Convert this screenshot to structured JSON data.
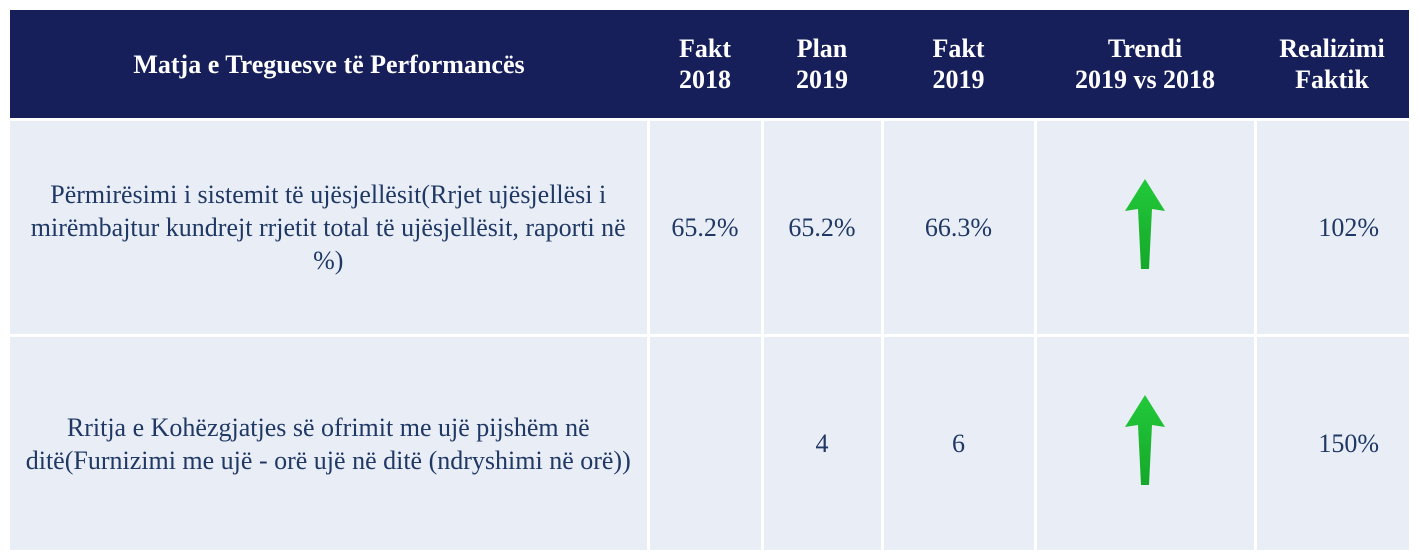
{
  "header": {
    "columns": [
      "Matja e Treguesve të Performancës",
      "Fakt\n2018",
      "Plan\n2019",
      "Fakt\n2019",
      "Trendi\n2019 vs 2018",
      "Realizimi\nFaktik"
    ]
  },
  "rows": [
    {
      "indicator": "Përmirësimi i sistemit të ujësjellësit(Rrjet ujësjellësi i mirëmbajtur kundrejt rrjetit total të ujësjellësit, raporti në %)",
      "fakt_2018": "65.2%",
      "plan_2019": "65.2%",
      "fakt_2019": "66.3%",
      "realizimi": "102%"
    },
    {
      "indicator": "Rritja e Kohëzgjatjes së ofrimit me ujë pijshëm në ditë(Furnizimi me ujë - orë ujë në ditë (ndryshimi në orë))",
      "plan_2019": "4",
      "fakt_2019": "6",
      "realizimi": "150%"
    }
  ]
}
